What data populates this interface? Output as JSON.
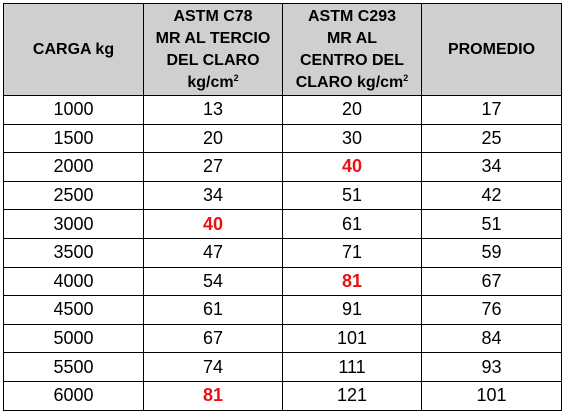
{
  "table": {
    "headers": {
      "carga": "CARGA kg",
      "c78": {
        "line1": "ASTM C78",
        "line2": "MR AL TERCIO",
        "line3": "DEL CLARO",
        "unit": "kg/cm",
        "sup": "2"
      },
      "c293": {
        "line1": "ASTM C293",
        "line2": "MR AL",
        "line3": "CENTRO DEL",
        "unit": "CLARO kg/cm",
        "sup": "2"
      },
      "promedio": "PROMEDIO"
    },
    "highlight_color": "#ee1111",
    "rows": [
      {
        "carga": "1000",
        "c78": "13",
        "c293": "20",
        "promedio": "17",
        "hl78": false,
        "hl293": false
      },
      {
        "carga": "1500",
        "c78": "20",
        "c293": "30",
        "promedio": "25",
        "hl78": false,
        "hl293": false
      },
      {
        "carga": "2000",
        "c78": "27",
        "c293": "40",
        "promedio": "34",
        "hl78": false,
        "hl293": true
      },
      {
        "carga": "2500",
        "c78": "34",
        "c293": "51",
        "promedio": "42",
        "hl78": false,
        "hl293": false
      },
      {
        "carga": "3000",
        "c78": "40",
        "c293": "61",
        "promedio": "51",
        "hl78": true,
        "hl293": false
      },
      {
        "carga": "3500",
        "c78": "47",
        "c293": "71",
        "promedio": "59",
        "hl78": false,
        "hl293": false
      },
      {
        "carga": "4000",
        "c78": "54",
        "c293": "81",
        "promedio": "67",
        "hl78": false,
        "hl293": true
      },
      {
        "carga": "4500",
        "c78": "61",
        "c293": "91",
        "promedio": "76",
        "hl78": false,
        "hl293": false
      },
      {
        "carga": "5000",
        "c78": "67",
        "c293": "101",
        "promedio": "84",
        "hl78": false,
        "hl293": false
      },
      {
        "carga": "5500",
        "c78": "74",
        "c293": "111",
        "promedio": "93",
        "hl78": false,
        "hl293": false
      },
      {
        "carga": "6000",
        "c78": "81",
        "c293": "121",
        "promedio": "101",
        "hl78": true,
        "hl293": false
      }
    ]
  }
}
